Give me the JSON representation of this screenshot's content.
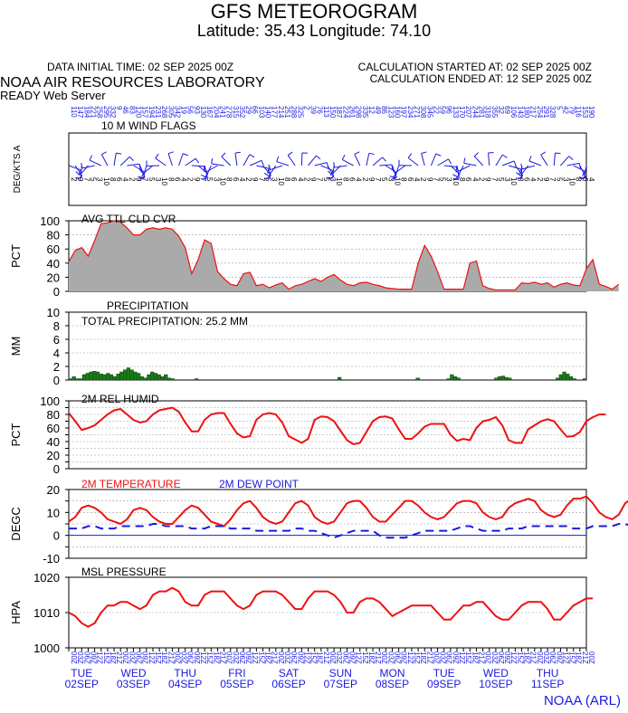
{
  "header": {
    "title": "GFS METEOROGRAM",
    "latlon": "Latitude: 35.43 Longitude:  74.10",
    "init_time": "DATA INITIAL TIME: 02 SEP 2025 00Z",
    "calc_start": "CALCULATION STARTED AT: 02 SEP 2025 00Z",
    "calc_end": "CALCULATION ENDED AT: 12 SEP 2025 00Z",
    "lab": "NOAA AIR RESOURCES LABORATORY",
    "server": "READY Web Server"
  },
  "footer": {
    "credit": "NOAA (ARL)"
  },
  "colors": {
    "temp": "#ee1111",
    "dew": "#1a1adf",
    "axis_text_blue": "#1a1adf",
    "cloud_fill": "#aaaaaa",
    "precip_fill": "#1a7a1a"
  },
  "chart_data": [
    {
      "type": "wind-barbs",
      "title": "10 M  WIND FLAGS",
      "ylabel": "DEG/KTS  A",
      "note": "wind barbs every 3 hours"
    },
    {
      "type": "area",
      "title": "AVG TTL CLD CVR",
      "ylabel": "PCT",
      "ylim": [
        0,
        100
      ],
      "yticks": [
        0,
        20,
        40,
        60,
        80,
        100
      ],
      "x_hours_step": 3,
      "values": [
        42,
        58,
        62,
        50,
        72,
        96,
        97,
        100,
        98,
        90,
        80,
        80,
        88,
        90,
        88,
        90,
        88,
        78,
        62,
        25,
        45,
        73,
        68,
        28,
        18,
        10,
        8,
        25,
        27,
        8,
        10,
        5,
        9,
        12,
        3,
        8,
        10,
        14,
        18,
        14,
        20,
        24,
        16,
        10,
        8,
        12,
        13,
        10,
        8,
        5,
        4,
        3,
        3,
        3,
        40,
        65,
        50,
        28,
        3,
        3,
        3,
        3,
        40,
        43,
        8,
        4,
        2,
        2,
        2,
        2,
        12,
        11,
        13,
        10,
        12,
        6,
        10,
        12,
        9,
        8,
        32,
        45,
        10,
        7,
        3,
        10
      ],
      "grid": true
    },
    {
      "type": "bar",
      "title": "PRECIPITATION",
      "subtitle": "TOTAL PRECIPITATION:  25.2 MM",
      "ylabel": "MM",
      "ylim": [
        0,
        10
      ],
      "yticks": [
        0,
        2,
        4,
        6,
        8,
        10
      ],
      "x_hours_step": 3,
      "values": [
        0.2,
        0.5,
        0.2,
        0.2,
        0.8,
        1.0,
        1.2,
        1.3,
        1.2,
        0.9,
        0.8,
        1.0,
        0.8,
        0.5,
        0.9,
        1.2,
        1.5,
        1.8,
        1.5,
        1.2,
        1.0,
        0.5,
        0.3,
        0.8,
        1.2,
        1.0,
        0.8,
        0.5,
        0.8,
        0.3,
        0.2,
        0,
        0,
        0,
        0,
        0,
        0,
        0.2,
        0,
        0,
        0,
        0,
        0,
        0,
        0,
        0,
        0,
        0,
        0,
        0,
        0,
        0,
        0,
        0,
        0,
        0,
        0,
        0,
        0,
        0,
        0,
        0,
        0,
        0,
        0,
        0,
        0,
        0,
        0,
        0,
        0,
        0,
        0,
        0,
        0,
        0,
        0,
        0,
        0,
        0.4,
        0,
        0,
        0,
        0,
        0,
        0,
        0,
        0,
        0,
        0,
        0,
        0,
        0,
        0,
        0,
        0,
        0,
        0,
        0,
        0,
        0,
        0,
        0.3,
        0,
        0,
        0,
        0,
        0,
        0,
        0,
        0,
        0.2,
        0.8,
        0.5,
        0.3,
        0,
        0,
        0,
        0,
        0,
        0,
        0,
        0,
        0,
        0,
        0.3,
        0.5,
        0.6,
        0.4,
        0.3,
        0,
        0,
        0,
        0,
        0,
        0,
        0,
        0,
        0,
        0,
        0,
        0,
        0,
        0.3,
        0.8,
        1.2,
        0.9,
        0.5,
        0.2,
        0,
        0,
        0.2
      ],
      "grid": true
    },
    {
      "type": "line",
      "title": "2M REL HUMID",
      "ylabel": "PCT",
      "ylim": [
        0,
        100
      ],
      "yticks": [
        0,
        10,
        20,
        30,
        40,
        50,
        60,
        70,
        80,
        90,
        100
      ],
      "ytick_labels": [
        0,
        20,
        40,
        60,
        80,
        100
      ],
      "x_hours_step": 3,
      "series": [
        {
          "values": [
            82,
            70,
            57,
            60,
            64,
            72,
            80,
            86,
            88,
            80,
            72,
            68,
            70,
            80,
            86,
            88,
            90,
            84,
            68,
            55,
            55,
            72,
            80,
            82,
            82,
            66,
            52,
            46,
            48,
            72,
            80,
            82,
            80,
            68,
            48,
            43,
            38,
            44,
            72,
            77,
            76,
            70,
            56,
            42,
            36,
            38,
            54,
            70,
            76,
            77,
            74,
            58,
            44,
            44,
            52,
            62,
            66,
            66,
            66,
            50,
            41,
            44,
            42,
            60,
            70,
            72,
            76,
            64,
            42,
            38,
            38,
            58,
            64,
            70,
            73,
            70,
            58,
            47,
            48,
            54,
            70,
            76,
            80,
            80
          ]
        }
      ],
      "grid": true
    },
    {
      "type": "line",
      "title": "2M TEMPERATURE",
      "title2": "2M    DEW POINT",
      "ylabel": "DEGC",
      "ylim": [
        -10,
        20
      ],
      "yticks": [
        -10,
        -5,
        0,
        5,
        10,
        15,
        20
      ],
      "ytick_labels": [
        -10,
        0,
        10,
        20
      ],
      "x_hours_step": 3,
      "series": [
        {
          "values": [
            6,
            8,
            12,
            13,
            12,
            10,
            7,
            6,
            5,
            7,
            11,
            12,
            11,
            8,
            6,
            5,
            5,
            8,
            11,
            13,
            12,
            9,
            6,
            5,
            4,
            7,
            11,
            14,
            15,
            12,
            8,
            6,
            5,
            6,
            10,
            14,
            15,
            13,
            8,
            6,
            5,
            6,
            10,
            14,
            15,
            15,
            12,
            8,
            6,
            6,
            9,
            12,
            15,
            15,
            13,
            10,
            8,
            7,
            8,
            11,
            14,
            15,
            15,
            14,
            10,
            8,
            7,
            8,
            12,
            14,
            15,
            16,
            15,
            11,
            9,
            8,
            9,
            13,
            16,
            16,
            17,
            14,
            10,
            8,
            7,
            9,
            14,
            16,
            15,
            12,
            10,
            9,
            8,
            10
          ]
        },
        {
          "values": [
            3,
            3,
            3,
            4,
            4,
            3,
            3,
            3,
            4,
            4,
            4,
            4,
            4,
            5,
            5,
            4,
            4,
            4,
            4,
            3,
            3,
            3,
            4,
            4,
            4,
            3,
            3,
            3,
            3,
            2,
            2,
            2,
            2,
            2,
            2,
            3,
            3,
            2,
            2,
            1,
            0,
            -1,
            0,
            1,
            2,
            2,
            2,
            2,
            0,
            -1,
            -1,
            -1,
            -1,
            0,
            1,
            2,
            2,
            2,
            2,
            2,
            3,
            4,
            4,
            3,
            2,
            2,
            2,
            2,
            3,
            3,
            3,
            4,
            4,
            4,
            4,
            4,
            4,
            4,
            3,
            3,
            3,
            4,
            4,
            4,
            4,
            5,
            5,
            4,
            4,
            4,
            4,
            4
          ]
        }
      ],
      "grid": true
    },
    {
      "type": "line",
      "title": "MSL PRESSURE",
      "ylabel": "HPA",
      "ylim": [
        1000,
        1020
      ],
      "yticks": [
        1000,
        1010,
        1020
      ],
      "x_hours_step": 3,
      "series": [
        {
          "values": [
            1010,
            1009,
            1007,
            1006,
            1007,
            1010,
            1012,
            1012,
            1013,
            1013,
            1012,
            1011,
            1012,
            1015,
            1016,
            1016,
            1017,
            1016,
            1013,
            1012,
            1012,
            1015,
            1016,
            1016,
            1016,
            1014,
            1012,
            1011,
            1012,
            1015,
            1016,
            1016,
            1016,
            1015,
            1013,
            1011,
            1011,
            1014,
            1016,
            1016,
            1016,
            1015,
            1013,
            1010,
            1010,
            1013,
            1014,
            1014,
            1013,
            1011,
            1009,
            1010,
            1011,
            1012,
            1012,
            1012,
            1012,
            1010,
            1008,
            1008,
            1010,
            1012,
            1012,
            1013,
            1013,
            1011,
            1009,
            1008,
            1008,
            1010,
            1012,
            1013,
            1013,
            1013,
            1011,
            1008,
            1008,
            1010,
            1012,
            1013,
            1014,
            1014
          ]
        }
      ],
      "grid": true
    }
  ],
  "time_axis": {
    "hour_labels": [
      "00",
      "03",
      "06",
      "09",
      "12",
      "15",
      "18",
      "21"
    ],
    "days": [
      {
        "dow": "TUE",
        "date": "02SEP"
      },
      {
        "dow": "WED",
        "date": "03SEP"
      },
      {
        "dow": "THU",
        "date": "04SEP"
      },
      {
        "dow": "FRI",
        "date": "05SEP"
      },
      {
        "dow": "SAT",
        "date": "06SEP"
      },
      {
        "dow": "SUN",
        "date": "07SEP"
      },
      {
        "dow": "MON",
        "date": "08SEP"
      },
      {
        "dow": "TUE",
        "date": "09SEP"
      },
      {
        "dow": "WED",
        "date": "10SEP"
      },
      {
        "dow": "THU",
        "date": "11SEP"
      }
    ]
  }
}
